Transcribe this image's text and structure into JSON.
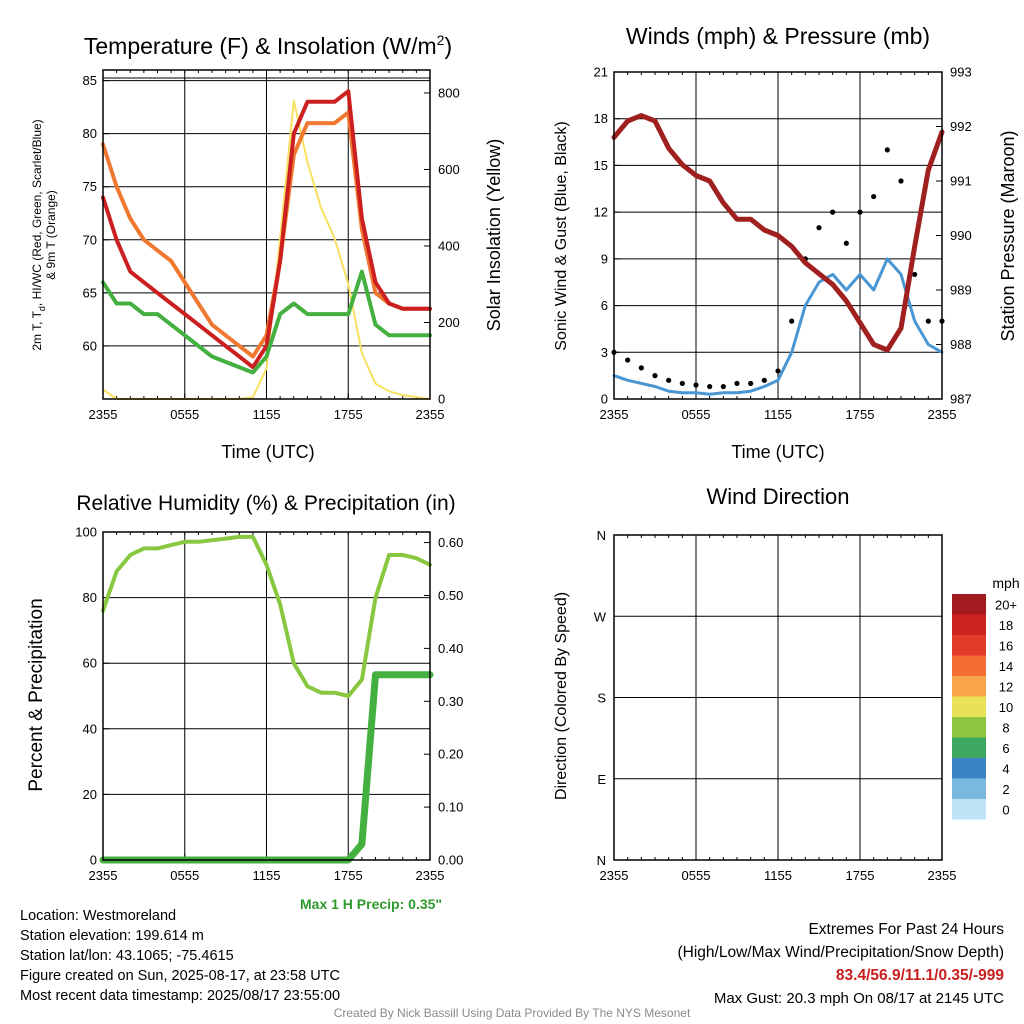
{
  "x_ticks": [
    "2355",
    "0555",
    "1155",
    "1755",
    "2355"
  ],
  "panels": {
    "temperature": {
      "title": "Temperature (F) & Insolation (W/m",
      "title_sup": "2",
      "title_end": ")",
      "ylabel_left_1": "2m T, T",
      "ylabel_left_sub": "d",
      "ylabel_left_2": ", HI/WC (Red, Green, Scarlet/Blue)",
      "ylabel_left_3": "& 9m T (Orange)",
      "ylabel_right": "Solar Insolation (Yellow)",
      "xlabel": "Time (UTC)"
    },
    "winds": {
      "title": "Winds (mph) & Pressure (mb)",
      "ylabel_left": "Sonic Wind & Gust (Blue, Black)",
      "ylabel_right": "Station Pressure (Maroon)",
      "xlabel": "Time (UTC)"
    },
    "humidity": {
      "title": "Relative Humidity (%) & Precipitation (in)",
      "ylabel_left": "Percent & Precipitation",
      "max_precip": "Max 1 H Precip: 0.35\""
    },
    "direction": {
      "title": "Wind Direction",
      "ylabel_left": "Direction (Colored By Speed)",
      "legend_title": "mph"
    }
  },
  "station": {
    "location": "Location: Westmoreland",
    "elevation": "Station elevation: 199.614 m",
    "latlon": "Station lat/lon: 43.1065; -75.4615",
    "created": "Figure created on Sun, 2025-08-17, at 23:58 UTC",
    "recent": "Most recent data timestamp: 2025/08/17 23:55:00"
  },
  "extremes": {
    "line1": "Extremes For Past 24 Hours",
    "line2": "(High/Low/Max Wind/Precipitation/Snow Depth)",
    "values": "83.4/56.9/11.1/0.35/-999",
    "max_gust": "Max Gust: 20.3 mph On 08/17 at 2145 UTC"
  },
  "credit": "Created By Nick Bassill Using Data Provided By The NYS Mesonet",
  "colors": {
    "temp_red": "#cc2020",
    "temp_orange": "#f07830",
    "dewpoint_green": "#44b040",
    "insolation_yellow": "#f8e060",
    "wind_blue": "#4a96d2",
    "gust_black": "#000000",
    "pressure_maroon": "#a02020",
    "rh_green": "#88c840",
    "precip_green": "#44b040"
  },
  "chart_data": [
    {
      "type": "line",
      "panel": "temperature",
      "x_hours_from_2355": [
        0,
        1,
        2,
        3,
        4,
        5,
        6,
        7,
        8,
        9,
        10,
        11,
        12,
        13,
        14,
        15,
        16,
        17,
        18,
        19,
        20,
        21,
        22,
        23,
        24
      ],
      "series": [
        {
          "axis": "left",
          "values": [
            74,
            70,
            67,
            66,
            65,
            64,
            63,
            62,
            61,
            60,
            59,
            58,
            60,
            68,
            80,
            83,
            83,
            83,
            84,
            72,
            66,
            64,
            63.5,
            63.5,
            63.5
          ]
        },
        {
          "axis": "left",
          "values": [
            79,
            75,
            72,
            70,
            69,
            68,
            66,
            64,
            62,
            61,
            60,
            59,
            61,
            68,
            78,
            81,
            81,
            81,
            82,
            71,
            65,
            64,
            63.5,
            63.5,
            63.5
          ]
        },
        {
          "axis": "left",
          "values": [
            66,
            64,
            64,
            63,
            63,
            62,
            61,
            60,
            59,
            58.5,
            58,
            57.5,
            59,
            63,
            64,
            63,
            63,
            63,
            63,
            67,
            62,
            61,
            61,
            61,
            61
          ]
        },
        {
          "axis": "right",
          "values": [
            25,
            0,
            0,
            0,
            0,
            0,
            0,
            0,
            0,
            0,
            0,
            5,
            80,
            420,
            780,
            620,
            500,
            420,
            300,
            120,
            40,
            20,
            10,
            5,
            0
          ]
        }
      ],
      "ylim": [
        55,
        86
      ],
      "y2lim": [
        0,
        860
      ]
    },
    {
      "type": "line",
      "panel": "winds",
      "x_hours_from_2355": [
        0,
        1,
        2,
        3,
        4,
        5,
        6,
        7,
        8,
        9,
        10,
        11,
        12,
        13,
        14,
        15,
        16,
        17,
        18,
        19,
        20,
        21,
        22,
        23,
        24
      ],
      "series": [
        {
          "axis": "left",
          "values": [
            1.5,
            1.2,
            1.0,
            0.8,
            0.5,
            0.4,
            0.4,
            0.3,
            0.4,
            0.4,
            0.5,
            0.8,
            1.2,
            3,
            6,
            7.5,
            8,
            7,
            8,
            7,
            9,
            8,
            5,
            3.5,
            3
          ]
        },
        {
          "axis": "left",
          "values": [
            3,
            2.5,
            2,
            1.5,
            1.2,
            1,
            0.9,
            0.8,
            0.8,
            1,
            1,
            1.2,
            1.8,
            5,
            9,
            11,
            12,
            10,
            12,
            13,
            16,
            14,
            8,
            5,
            5
          ]
        },
        {
          "axis": "right",
          "values": [
            991.8,
            992.1,
            992.2,
            992.1,
            991.6,
            991.3,
            991.1,
            991.0,
            990.6,
            990.3,
            990.3,
            990.1,
            990.0,
            989.8,
            989.5,
            989.3,
            989.1,
            988.8,
            988.4,
            988.0,
            987.9,
            988.3,
            989.8,
            991.2,
            991.9
          ]
        }
      ],
      "ylim": [
        0,
        21
      ],
      "y2lim": [
        987,
        993
      ]
    },
    {
      "type": "line",
      "panel": "humidity",
      "x_hours_from_2355": [
        0,
        1,
        2,
        3,
        4,
        5,
        6,
        7,
        8,
        9,
        10,
        11,
        12,
        13,
        14,
        15,
        16,
        17,
        18,
        19,
        20,
        21,
        22,
        23,
        24
      ],
      "series": [
        {
          "axis": "left",
          "values": [
            76,
            88,
            93,
            95,
            95,
            96,
            97,
            97,
            97.5,
            98,
            98.5,
            98.5,
            90,
            78,
            60,
            53,
            51,
            51,
            50,
            55,
            80,
            93,
            93,
            92,
            90
          ]
        },
        {
          "axis": "right",
          "values": [
            0,
            0,
            0,
            0,
            0,
            0,
            0,
            0,
            0,
            0,
            0,
            0,
            0,
            0,
            0,
            0,
            0,
            0,
            0,
            0.03,
            0.35,
            0.35,
            0.35,
            0.35,
            0.35
          ]
        }
      ],
      "ylim": [
        0,
        100
      ],
      "y2lim": [
        0,
        0.62
      ]
    },
    {
      "type": "scatter",
      "panel": "direction",
      "y_categories": [
        "N",
        "E",
        "S",
        "W",
        "N"
      ],
      "legend_entries": [
        "20+",
        "18",
        "16",
        "14",
        "12",
        "10",
        "8",
        "6",
        "4",
        "2",
        "0"
      ],
      "legend_colors": [
        "#a31b1f",
        "#cc2220",
        "#e23b2a",
        "#f46d32",
        "#f9a44a",
        "#e8e256",
        "#8cc63f",
        "#3ea75f",
        "#3a84c4",
        "#7ab8e0",
        "#bfe3f7"
      ]
    }
  ]
}
